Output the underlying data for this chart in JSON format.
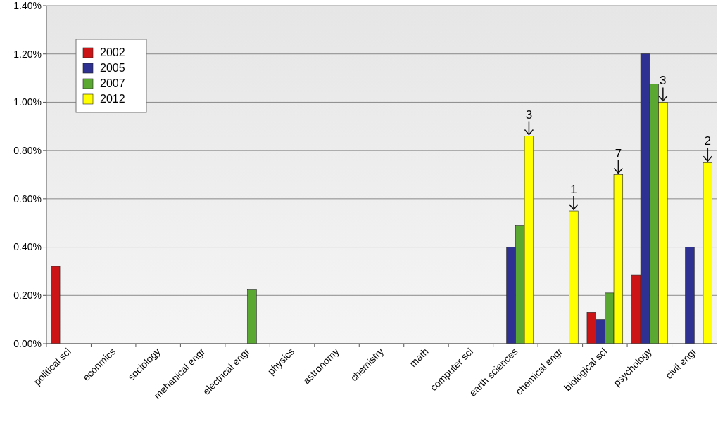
{
  "chart_data": {
    "type": "bar",
    "categories": [
      "political sci",
      "econmics",
      "sociology",
      "mehanical engr",
      "electrical engr",
      "physics",
      "astronomy",
      "chemistry",
      "math",
      "computer sci",
      "earth sciences",
      "chemical engr",
      "biological sci",
      "psychology",
      "civil engr"
    ],
    "series": [
      {
        "name": "2002",
        "color": "#cc1417",
        "values": [
          0.32,
          null,
          null,
          null,
          null,
          null,
          null,
          null,
          null,
          null,
          null,
          null,
          0.13,
          0.285,
          null
        ]
      },
      {
        "name": "2005",
        "color": "#2e3192",
        "values": [
          null,
          null,
          null,
          null,
          null,
          null,
          null,
          null,
          null,
          null,
          0.4,
          null,
          0.1,
          1.2,
          0.4
        ]
      },
      {
        "name": "2007",
        "color": "#5aa832",
        "values": [
          null,
          null,
          null,
          null,
          0.225,
          null,
          null,
          null,
          null,
          null,
          0.49,
          null,
          0.21,
          1.075,
          null
        ]
      },
      {
        "name": "2012",
        "color": "#ffff00",
        "values": [
          null,
          null,
          null,
          null,
          null,
          null,
          null,
          null,
          null,
          null,
          0.86,
          0.55,
          0.7,
          1.0,
          0.75
        ]
      }
    ],
    "ylim": [
      0,
      1.4
    ],
    "yticks": [
      {
        "value": 0,
        "label": "0.00%"
      },
      {
        "value": 0.2,
        "label": "0.20%"
      },
      {
        "value": 0.4,
        "label": "0.40%"
      },
      {
        "value": 0.6,
        "label": "0.60%"
      },
      {
        "value": 0.8,
        "label": "0.80%"
      },
      {
        "value": 1.0,
        "label": "1.00%"
      },
      {
        "value": 1.2,
        "label": "1.20%"
      },
      {
        "value": 1.4,
        "label": "1.40%"
      }
    ],
    "grid": "y",
    "legend": "top left",
    "annotations": [
      "3",
      "1",
      "7",
      "3",
      "2"
    ]
  }
}
